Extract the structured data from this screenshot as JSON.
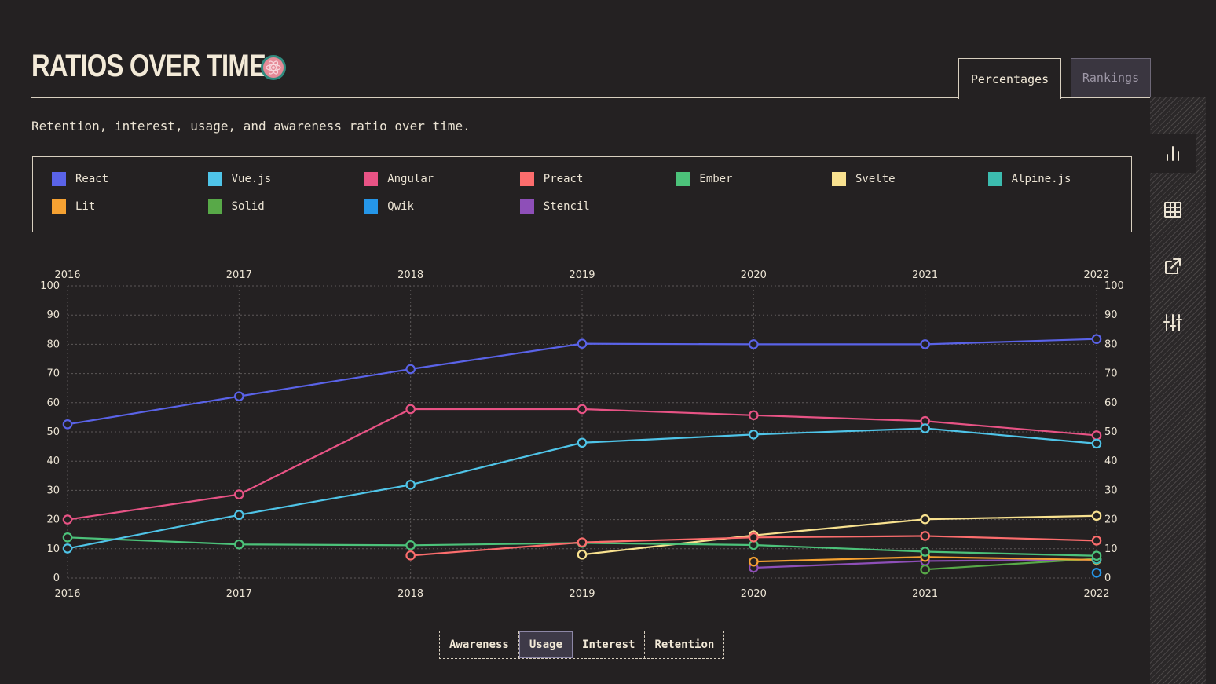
{
  "header": {
    "title": "Ratios over time",
    "description": "Retention, interest, usage, and awareness ratio over time.",
    "tabs": [
      {
        "label": "Percentages",
        "active": true
      },
      {
        "label": "Rankings",
        "active": false
      }
    ]
  },
  "sidebar": {
    "buttons": [
      "bar-chart-icon",
      "table-icon",
      "share-icon",
      "sliders-icon"
    ]
  },
  "metric_switcher": {
    "options": [
      "Awareness",
      "Usage",
      "Interest",
      "Retention"
    ],
    "selected": "Usage"
  },
  "chart_data": {
    "type": "line",
    "title": "Ratios over time",
    "x": [
      2016,
      2017,
      2018,
      2019,
      2020,
      2021,
      2022
    ],
    "ylim": [
      0,
      100
    ],
    "yticks": [
      0,
      10,
      20,
      30,
      40,
      50,
      60,
      70,
      80,
      90,
      100
    ],
    "grid": true,
    "series": [
      {
        "name": "React",
        "color": "#5a63e8",
        "values": [
          52.6,
          62.2,
          71.5,
          80.2,
          80.0,
          80.0,
          81.8
        ]
      },
      {
        "name": "Vue.js",
        "color": "#4fc4e8",
        "values": [
          10.1,
          21.6,
          31.9,
          46.3,
          49.1,
          51.2,
          46.0
        ]
      },
      {
        "name": "Angular",
        "color": "#e85385",
        "values": [
          20.0,
          28.6,
          57.8,
          57.8,
          55.7,
          53.7,
          48.8
        ]
      },
      {
        "name": "Preact",
        "color": "#fc6d6d",
        "values": [
          null,
          null,
          7.7,
          12.2,
          13.9,
          14.4,
          12.8
        ]
      },
      {
        "name": "Ember",
        "color": "#4cc27a",
        "values": [
          13.9,
          11.5,
          11.2,
          12.0,
          11.3,
          9.0,
          7.6
        ]
      },
      {
        "name": "Svelte",
        "color": "#f8e18f",
        "values": [
          null,
          null,
          null,
          8.0,
          14.6,
          20.1,
          21.3
        ]
      },
      {
        "name": "Alpine.js",
        "color": "#3cbcaf",
        "values": [
          null,
          null,
          null,
          null,
          null,
          null,
          6.4
        ]
      },
      {
        "name": "Lit",
        "color": "#f5a132",
        "values": [
          null,
          null,
          null,
          null,
          5.6,
          7.2,
          6.2
        ]
      },
      {
        "name": "Solid",
        "color": "#58a948",
        "values": [
          null,
          null,
          null,
          null,
          null,
          2.9,
          6.6
        ]
      },
      {
        "name": "Qwik",
        "color": "#2596e8",
        "values": [
          null,
          null,
          null,
          null,
          null,
          null,
          1.8
        ]
      },
      {
        "name": "Stencil",
        "color": "#8e4fb8",
        "values": [
          null,
          null,
          null,
          null,
          3.5,
          5.8,
          6.3
        ]
      }
    ]
  }
}
